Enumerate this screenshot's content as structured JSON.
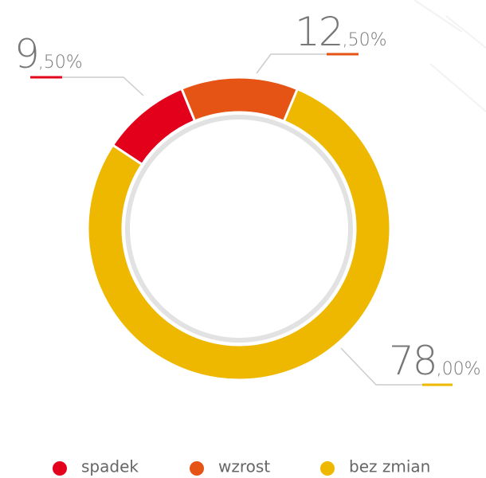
{
  "chart_data": {
    "type": "donut",
    "categories": [
      "spadek",
      "wzrost",
      "bez zmian"
    ],
    "values": [
      9.5,
      12.5,
      78
    ],
    "value_labels": [
      "9,50%",
      "12,50%",
      "78,00%"
    ],
    "colors": [
      "#e2001a",
      "#e55315",
      "#eeb800"
    ],
    "legend": "bottom"
  }
}
